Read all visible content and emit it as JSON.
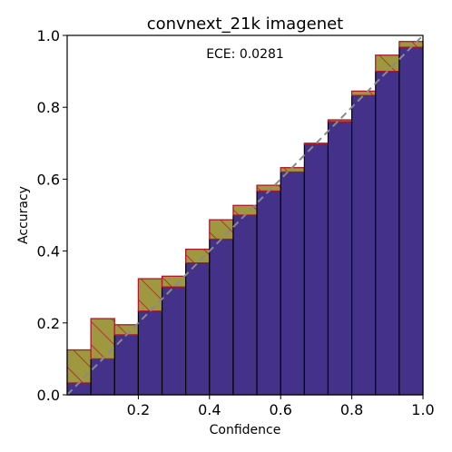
{
  "chart_data": {
    "type": "bar",
    "title": "convnext_21k  imagenet",
    "xlabel": "Confidence",
    "ylabel": "Accuracy",
    "annotation": "ECE: 0.0281",
    "xlim": [
      0,
      1
    ],
    "ylim": [
      0,
      1
    ],
    "xticks": [
      "0.2",
      "0.4",
      "0.6",
      "0.8",
      "1.0"
    ],
    "xtick_values": [
      0.2,
      0.4,
      0.6,
      0.8,
      1.0
    ],
    "yticks": [
      "0.0",
      "0.2",
      "0.4",
      "0.6",
      "0.8",
      "1.0"
    ],
    "ytick_values": [
      0.0,
      0.2,
      0.4,
      0.6,
      0.8,
      1.0
    ],
    "bins": 15,
    "bin_edges": [
      0,
      0.0667,
      0.1333,
      0.2,
      0.2667,
      0.3333,
      0.4,
      0.4667,
      0.5333,
      0.6,
      0.6667,
      0.7333,
      0.8,
      0.8667,
      0.9333,
      1.0
    ],
    "series": [
      {
        "name": "accuracy",
        "values": [
          0.033,
          0.1,
          0.167,
          0.233,
          0.3,
          0.367,
          0.433,
          0.5,
          0.567,
          0.62,
          0.697,
          0.76,
          0.833,
          0.9,
          0.967
        ]
      },
      {
        "name": "confidence",
        "values": [
          0.125,
          0.212,
          0.195,
          0.323,
          0.33,
          0.405,
          0.487,
          0.527,
          0.583,
          0.632,
          0.7,
          0.765,
          0.845,
          0.945,
          0.983
        ]
      }
    ],
    "colors": {
      "accuracy_fill": "#44328a",
      "gap_fill": "#9e9840",
      "gap_edge": "#b2182b",
      "over_fill": "#f3b2a0",
      "over_fill_light": "#f2e38c",
      "bar_edge": "#000000",
      "diagonal": "#8a8a8a"
    },
    "grid": false,
    "legend": "none"
  }
}
